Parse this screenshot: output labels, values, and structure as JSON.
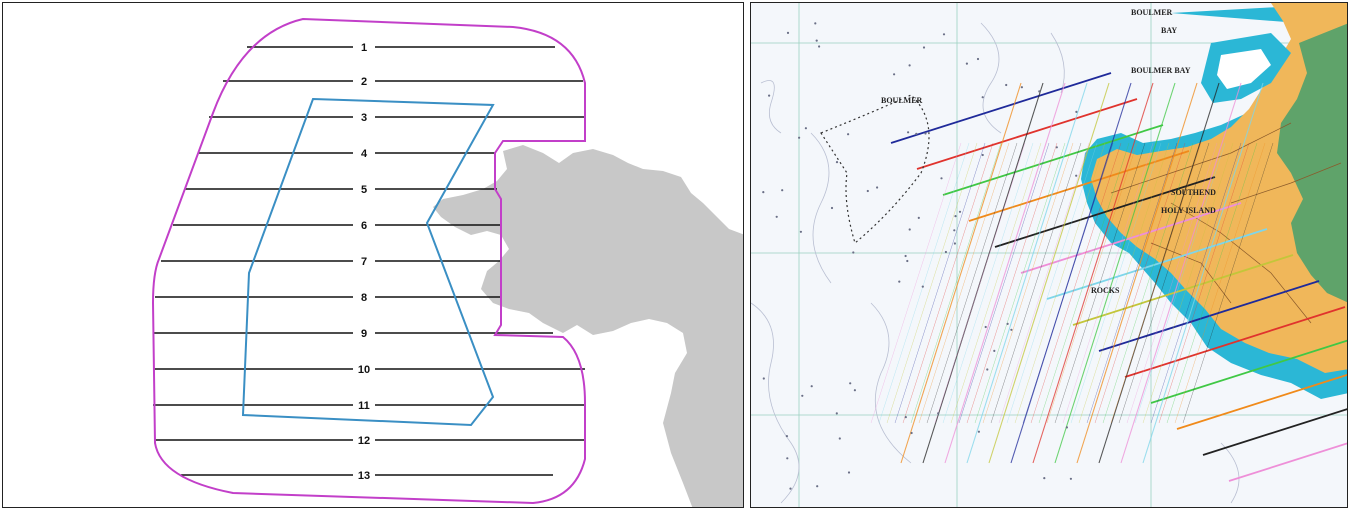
{
  "left_map": {
    "line_labels": [
      "1",
      "2",
      "3",
      "4",
      "5",
      "6",
      "7",
      "8",
      "9",
      "10",
      "11",
      "12",
      "13"
    ],
    "colors": {
      "survey_boundary": "#c23fc9",
      "inner_polygon": "#3a8fc4",
      "survey_line": "#111111",
      "land": "#c8c8c8"
    }
  },
  "right_chart": {
    "labels": {
      "bay_title": "BOULMER",
      "bay": "BAY",
      "bay2": "BOULMER BAY",
      "island": "HOLY ISLAND",
      "north_label": "BOULMER",
      "town": "SOUTHEND",
      "reef": "ROCKS"
    },
    "colors": {
      "land": "#f0b75a",
      "shallow_water": "#2bb7d6",
      "deep_water": "#f4f7fb",
      "green_land": "#5fa36a",
      "grid": "#9ad1c1"
    },
    "line_colors": [
      "#1f2a9a",
      "#e0332d",
      "#40c845",
      "#f08a1a",
      "#222222",
      "#ee8fd8",
      "#7fd6ea",
      "#c3c63a"
    ]
  }
}
